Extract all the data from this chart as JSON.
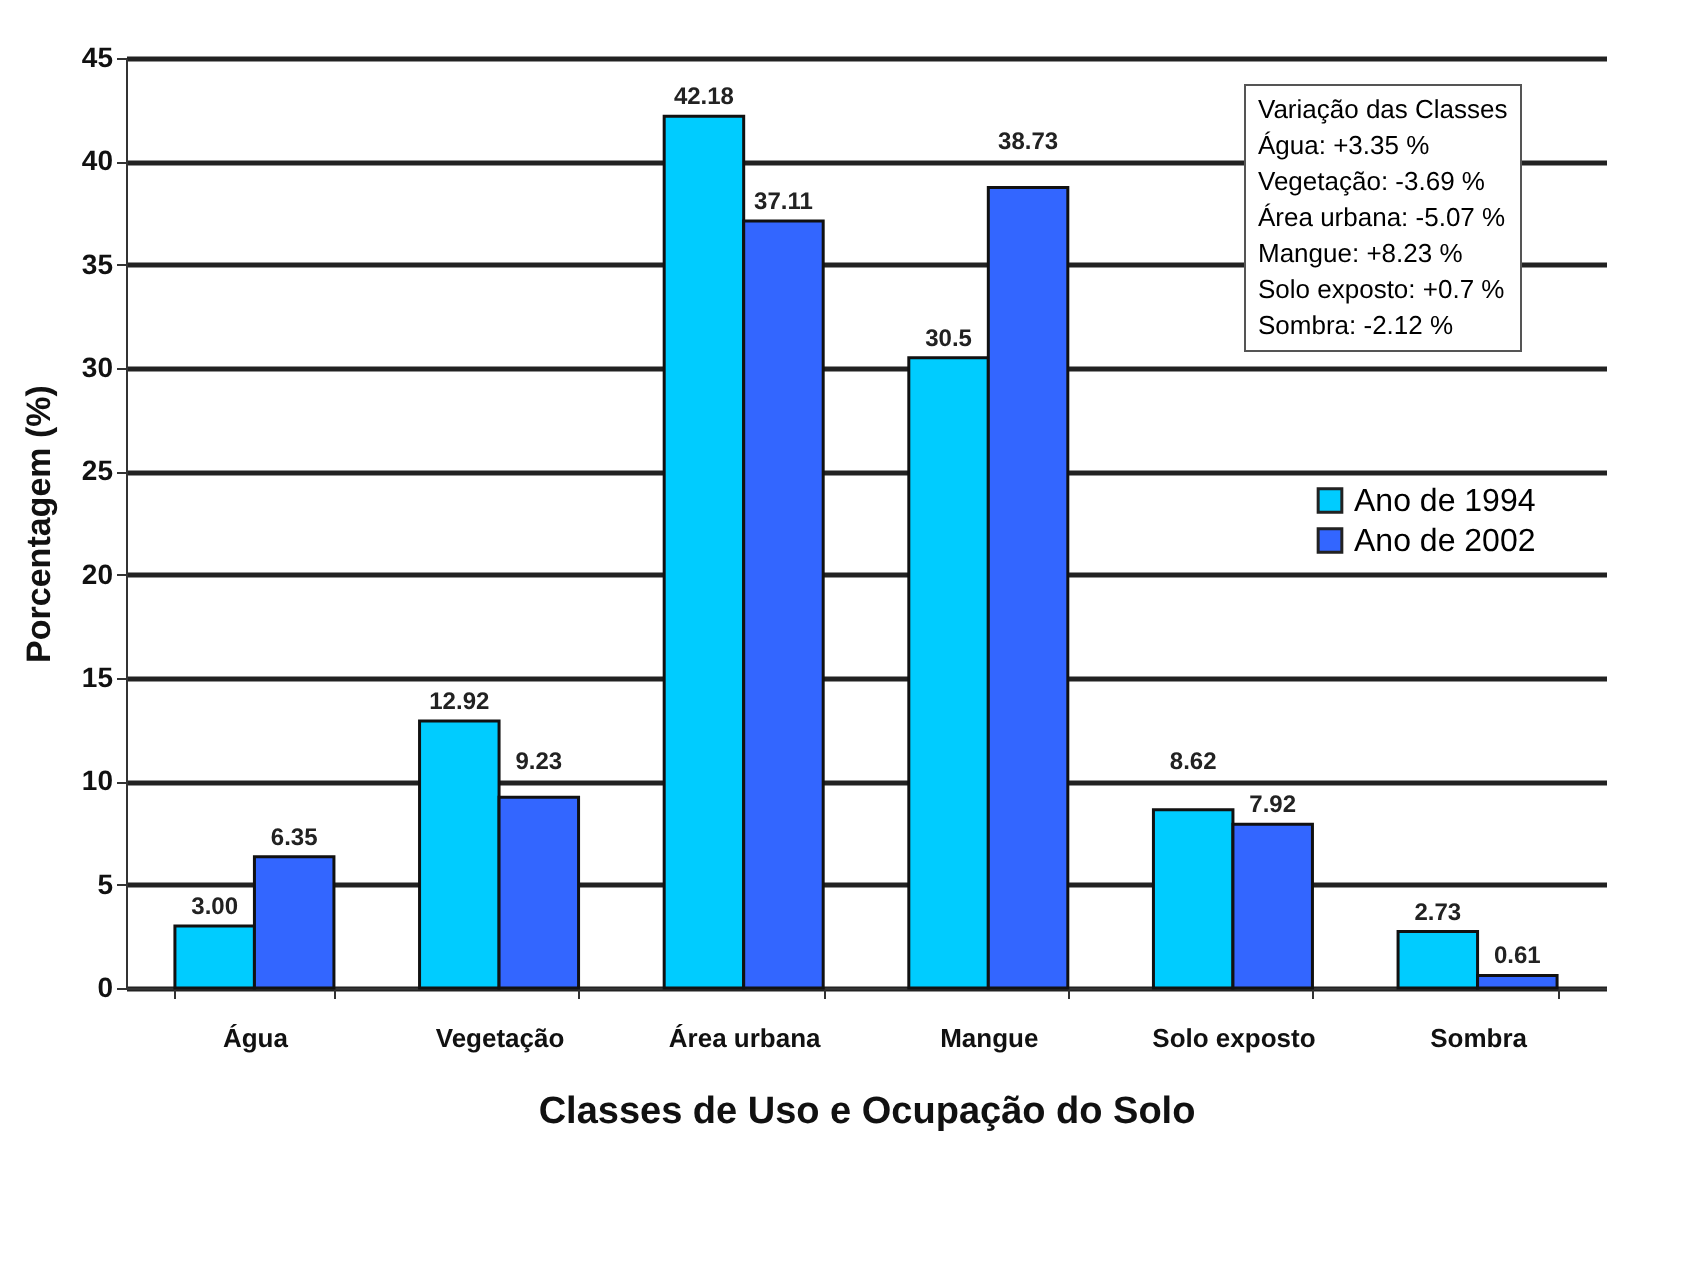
{
  "chart_data": {
    "type": "bar",
    "xlabel": "Classes de Uso e Ocupação do Solo",
    "ylabel": "Porcentagem (%)",
    "categories": [
      "Água",
      "Vegetação",
      "Área urbana",
      "Mangue",
      "Solo exposto",
      "Sombra"
    ],
    "series": [
      {
        "name": "Ano de 1994",
        "color": "#00ccff",
        "values": [
          3.0,
          12.92,
          42.18,
          30.5,
          8.62,
          2.73
        ],
        "value_labels": [
          "3.00",
          "12.92",
          "42.18",
          "30.5",
          "8.62",
          "2.73"
        ]
      },
      {
        "name": "Ano de 2002",
        "color": "#3366ff",
        "values": [
          6.35,
          9.23,
          37.11,
          38.73,
          7.92,
          0.61
        ],
        "value_labels": [
          "6.35",
          "9.23",
          "37.11",
          "38.73",
          "7.92",
          "0.61"
        ]
      }
    ],
    "ylim": [
      0,
      45
    ],
    "yticks": [
      0,
      5,
      10,
      15,
      20,
      25,
      30,
      35,
      40,
      45
    ],
    "grid": "y",
    "legend": "right",
    "annotations": [
      "Variação das Classes",
      "Água: +3.35 %",
      "Vegetação: -3.69 %",
      "Área urbana: -5.07 %",
      "Mangue: +8.23 %",
      "Solo exposto: +0.7 %",
      "Sombra: -2.12 %"
    ]
  }
}
